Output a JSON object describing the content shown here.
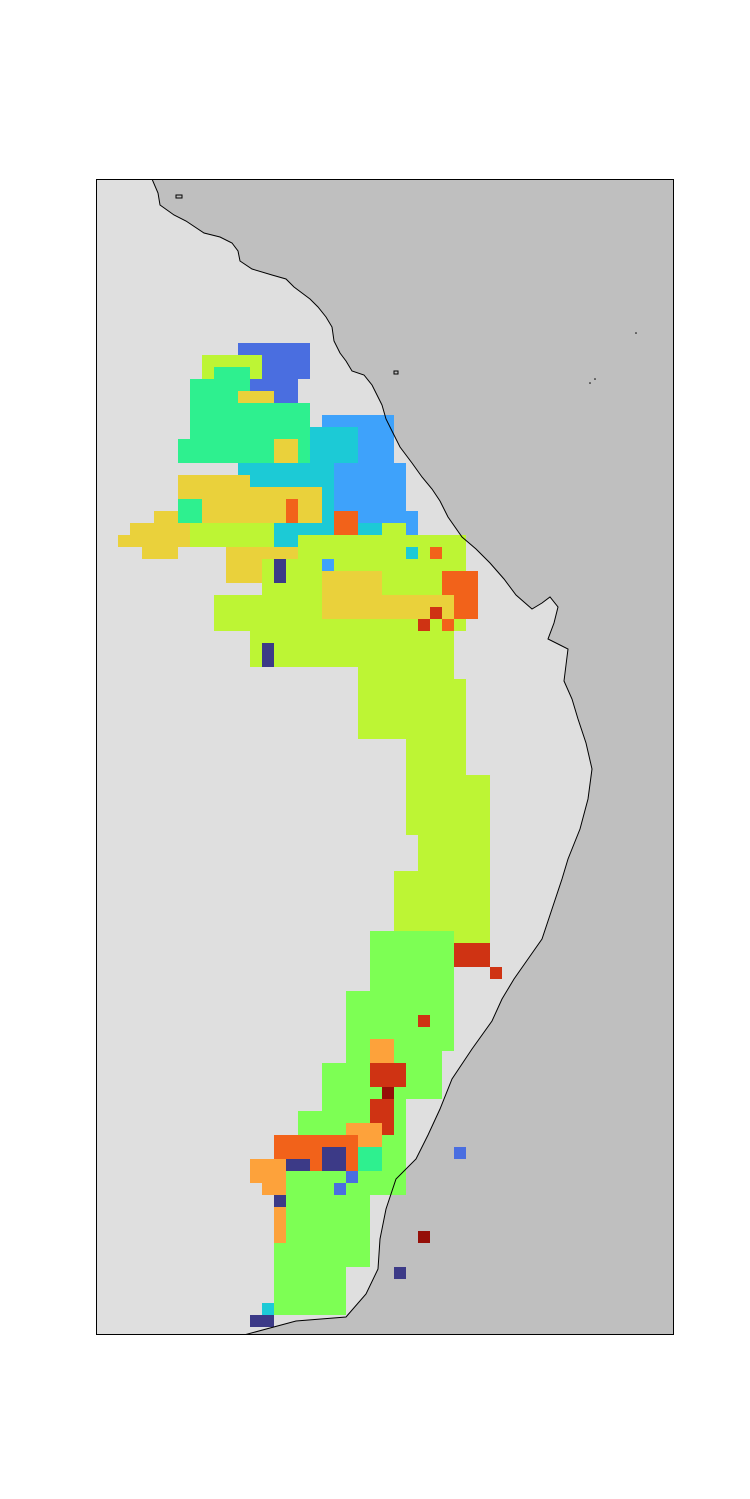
{
  "map": {
    "colors": {
      "land": "#dfdfdf",
      "ocean": "#bfbfbf",
      "coastline": "#000000",
      "frame": "#000000"
    },
    "region_palette": {
      "indigo": "#3c3a87",
      "royal_blue": "#4a6ee0",
      "sky_blue": "#3ea2fb",
      "cyan": "#1ccad6",
      "aquamarine": "#2ef08f",
      "light_green": "#7dff54",
      "yellow_green": "#bdf534",
      "mustard": "#ead13b",
      "light_orange": "#fda23b",
      "orange": "#f2621a",
      "red_orange": "#cf3313",
      "dark_red": "#950f08"
    }
  }
}
